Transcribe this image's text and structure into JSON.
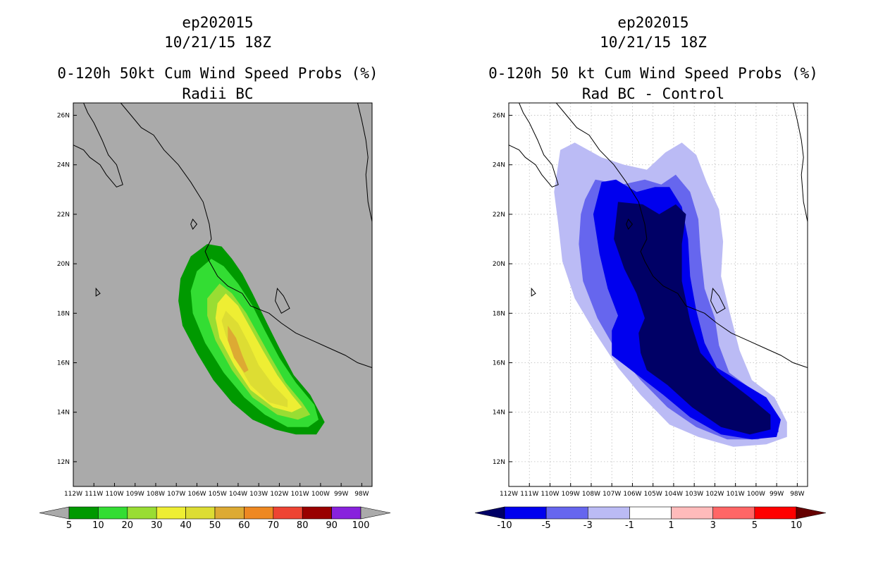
{
  "chart_data": [
    {
      "type": "heatmap",
      "title_lines": [
        "ep202015",
        "10/21/15 18Z",
        "0-120h 50kt Cum Wind Speed Probs (%)",
        "Radii BC"
      ],
      "field": "cumulative 50 kt wind speed probability (%)",
      "contour_levels": [
        5,
        10,
        20,
        30,
        40,
        50,
        60,
        70,
        80,
        90,
        100
      ],
      "colorbar": {
        "labels": [
          "5",
          "10",
          "20",
          "30",
          "40",
          "50",
          "60",
          "70",
          "80",
          "90",
          "100"
        ],
        "colors": [
          "#009900",
          "#33dd33",
          "#99dd33",
          "#eeee33",
          "#dddd33",
          "#ddaa33",
          "#ee8822",
          "#ee4433",
          "#990000",
          "#8822dd"
        ],
        "end_colors": [
          "#aaaaaa",
          "#aaaaaa"
        ]
      },
      "xlim": [
        -112,
        -97.5
      ],
      "ylim": [
        11,
        26.5
      ],
      "x_ticks": [
        -112,
        -111,
        -110,
        -109,
        -108,
        -107,
        -106,
        -105,
        -104,
        -103,
        -102,
        -101,
        -100,
        -99,
        -98
      ],
      "x_tick_labels": [
        "112W",
        "111W",
        "110W",
        "109W",
        "108W",
        "107W",
        "106W",
        "105W",
        "104W",
        "103W",
        "102W",
        "101W",
        "100W",
        "99W",
        "98W"
      ],
      "y_ticks": [
        12,
        14,
        16,
        18,
        20,
        22,
        24,
        26
      ],
      "y_tick_labels": [
        "12N",
        "14N",
        "16N",
        "18N",
        "20N",
        "22N",
        "24N",
        "26N"
      ],
      "grid": false,
      "map_background": "#aaaaaa",
      "region_fill_colors": [
        "#009900",
        "#33dd33",
        "#99dd33",
        "#eeee33",
        "#dddd33",
        "#ddaa33"
      ],
      "regions": [
        {
          "level": 5,
          "outline": [
            [
              -105.5,
              20.8
            ],
            [
              -104.8,
              20.7
            ],
            [
              -104.3,
              20.2
            ],
            [
              -103.8,
              19.6
            ],
            [
              -103.3,
              18.8
            ],
            [
              -102.6,
              17.6
            ],
            [
              -102.0,
              16.6
            ],
            [
              -101.3,
              15.5
            ],
            [
              -100.5,
              14.7
            ],
            [
              -99.8,
              13.6
            ],
            [
              -100.2,
              13.1
            ],
            [
              -101.2,
              13.1
            ],
            [
              -102.2,
              13.3
            ],
            [
              -103.3,
              13.7
            ],
            [
              -104.3,
              14.4
            ],
            [
              -105.2,
              15.3
            ],
            [
              -106.0,
              16.4
            ],
            [
              -106.7,
              17.5
            ],
            [
              -106.9,
              18.5
            ],
            [
              -106.8,
              19.4
            ],
            [
              -106.3,
              20.3
            ]
          ]
        },
        {
          "level": 10,
          "outline": [
            [
              -105.3,
              20.2
            ],
            [
              -104.7,
              19.9
            ],
            [
              -104.0,
              19.2
            ],
            [
              -103.3,
              18.3
            ],
            [
              -102.7,
              17.3
            ],
            [
              -102.0,
              16.2
            ],
            [
              -101.2,
              15.2
            ],
            [
              -100.3,
              14.3
            ],
            [
              -100.1,
              13.7
            ],
            [
              -100.6,
              13.4
            ],
            [
              -101.6,
              13.4
            ],
            [
              -102.7,
              13.9
            ],
            [
              -103.7,
              14.6
            ],
            [
              -104.7,
              15.6
            ],
            [
              -105.6,
              16.8
            ],
            [
              -106.2,
              18.0
            ],
            [
              -106.3,
              18.9
            ],
            [
              -106.0,
              19.7
            ]
          ]
        },
        {
          "level": 20,
          "outline": [
            [
              -104.9,
              19.2
            ],
            [
              -104.3,
              18.8
            ],
            [
              -103.6,
              18.0
            ],
            [
              -103.0,
              17.1
            ],
            [
              -102.4,
              16.2
            ],
            [
              -101.7,
              15.2
            ],
            [
              -100.9,
              14.4
            ],
            [
              -100.5,
              13.9
            ],
            [
              -101.1,
              13.7
            ],
            [
              -102.1,
              13.9
            ],
            [
              -103.3,
              14.6
            ],
            [
              -104.3,
              15.7
            ],
            [
              -105.1,
              16.9
            ],
            [
              -105.5,
              17.9
            ],
            [
              -105.5,
              18.6
            ]
          ]
        },
        {
          "level": 30,
          "outline": [
            [
              -104.6,
              18.8
            ],
            [
              -104.0,
              18.3
            ],
            [
              -103.4,
              17.4
            ],
            [
              -102.8,
              16.5
            ],
            [
              -102.1,
              15.5
            ],
            [
              -101.4,
              14.7
            ],
            [
              -100.9,
              14.2
            ],
            [
              -101.4,
              14.0
            ],
            [
              -102.3,
              14.2
            ],
            [
              -103.4,
              14.9
            ],
            [
              -104.2,
              15.9
            ],
            [
              -104.9,
              17.0
            ],
            [
              -105.1,
              17.8
            ],
            [
              -105.0,
              18.4
            ]
          ]
        },
        {
          "level": 40,
          "outline": [
            [
              -104.6,
              18.1
            ],
            [
              -104.0,
              17.6
            ],
            [
              -103.5,
              16.8
            ],
            [
              -103.0,
              15.9
            ],
            [
              -102.3,
              15.1
            ],
            [
              -101.6,
              14.5
            ],
            [
              -101.6,
              14.2
            ],
            [
              -102.5,
              14.4
            ],
            [
              -103.4,
              15.1
            ],
            [
              -104.1,
              16.1
            ],
            [
              -104.6,
              17.1
            ],
            [
              -104.8,
              17.7
            ]
          ]
        },
        {
          "level": 50,
          "outline": [
            [
              -104.5,
              17.5
            ],
            [
              -104.1,
              17.0
            ],
            [
              -103.8,
              16.3
            ],
            [
              -103.5,
              15.7
            ],
            [
              -103.7,
              15.6
            ],
            [
              -104.2,
              16.2
            ],
            [
              -104.5,
              16.9
            ]
          ]
        }
      ],
      "coastline_note": "black coastline outlines of Baja California and mainland Mexico"
    },
    {
      "type": "heatmap",
      "title_lines": [
        "ep202015",
        "10/21/15 18Z",
        "0-120h 50 kt Cum Wind Speed Probs (%)",
        "Rad BC - Control"
      ],
      "field": "difference: Radii BC minus Control (%)",
      "contour_levels": [
        -10,
        -5,
        -3,
        -1,
        1,
        3,
        5,
        10
      ],
      "colorbar": {
        "labels": [
          "-10",
          "-5",
          "-3",
          "-1",
          "1",
          "3",
          "5",
          "10"
        ],
        "colors": [
          "#0000ee",
          "#6666ee",
          "#bbbbf5",
          "#ffffff",
          "#ffbbbb",
          "#ff6666",
          "#ff0000"
        ],
        "end_colors": [
          "#000066",
          "#660000"
        ]
      },
      "xlim": [
        -112,
        -97.5
      ],
      "ylim": [
        11,
        26.5
      ],
      "x_ticks": [
        -112,
        -111,
        -110,
        -109,
        -108,
        -107,
        -106,
        -105,
        -104,
        -103,
        -102,
        -101,
        -100,
        -99,
        -98
      ],
      "x_tick_labels": [
        "112W",
        "111W",
        "110W",
        "109W",
        "108W",
        "107W",
        "106W",
        "105W",
        "104W",
        "103W",
        "102W",
        "101W",
        "100W",
        "99W",
        "98W"
      ],
      "y_ticks": [
        12,
        14,
        16,
        18,
        20,
        22,
        24,
        26
      ],
      "y_tick_labels": [
        "12N",
        "14N",
        "16N",
        "18N",
        "20N",
        "22N",
        "24N",
        "26N"
      ],
      "grid": true,
      "map_background": "#ffffff",
      "region_fill_colors": [
        "#bbbbf5",
        "#6666ee",
        "#0000ee",
        "#000066"
      ],
      "regions": [
        {
          "level": -1,
          "outline": [
            [
              -109.5,
              24.6
            ],
            [
              -108.8,
              24.9
            ],
            [
              -107.5,
              24.3
            ],
            [
              -106.4,
              24.0
            ],
            [
              -105.3,
              23.8
            ],
            [
              -104.4,
              24.5
            ],
            [
              -103.6,
              24.9
            ],
            [
              -102.9,
              24.4
            ],
            [
              -102.4,
              23.3
            ],
            [
              -101.8,
              22.2
            ],
            [
              -101.6,
              20.9
            ],
            [
              -101.7,
              19.5
            ],
            [
              -101.3,
              18.1
            ],
            [
              -100.8,
              16.5
            ],
            [
              -100.2,
              15.3
            ],
            [
              -99.1,
              14.6
            ],
            [
              -98.5,
              13.6
            ],
            [
              -98.5,
              13.0
            ],
            [
              -99.5,
              12.7
            ],
            [
              -101.1,
              12.6
            ],
            [
              -102.8,
              13.0
            ],
            [
              -104.2,
              13.5
            ],
            [
              -105.6,
              14.7
            ],
            [
              -106.7,
              15.8
            ],
            [
              -107.8,
              17.2
            ],
            [
              -108.8,
              18.6
            ],
            [
              -109.4,
              20.1
            ],
            [
              -109.6,
              21.6
            ],
            [
              -109.8,
              22.9
            ]
          ]
        },
        {
          "level": -3,
          "outline": [
            [
              -108.3,
              22.6
            ],
            [
              -107.8,
              23.4
            ],
            [
              -106.5,
              23.2
            ],
            [
              -105.4,
              23.4
            ],
            [
              -104.6,
              23.2
            ],
            [
              -103.9,
              23.6
            ],
            [
              -103.2,
              22.9
            ],
            [
              -102.8,
              21.8
            ],
            [
              -102.7,
              20.5
            ],
            [
              -102.5,
              19.0
            ],
            [
              -102.0,
              17.8
            ],
            [
              -101.8,
              16.7
            ],
            [
              -101.3,
              15.6
            ],
            [
              -100.0,
              14.8
            ],
            [
              -99.0,
              13.9
            ],
            [
              -98.9,
              13.2
            ],
            [
              -99.9,
              12.9
            ],
            [
              -101.4,
              12.9
            ],
            [
              -102.9,
              13.4
            ],
            [
              -104.3,
              14.2
            ],
            [
              -105.6,
              15.3
            ],
            [
              -106.8,
              16.5
            ],
            [
              -107.7,
              17.8
            ],
            [
              -108.4,
              19.3
            ],
            [
              -108.6,
              20.8
            ],
            [
              -108.5,
              22.0
            ]
          ]
        },
        {
          "level": -5,
          "outline": [
            [
              -107.9,
              22.0
            ],
            [
              -107.5,
              23.3
            ],
            [
              -106.8,
              23.4
            ],
            [
              -105.8,
              22.9
            ],
            [
              -104.9,
              23.1
            ],
            [
              -104.2,
              23.1
            ],
            [
              -103.6,
              22.3
            ],
            [
              -103.3,
              21.0
            ],
            [
              -103.2,
              19.5
            ],
            [
              -102.9,
              18.1
            ],
            [
              -102.5,
              16.8
            ],
            [
              -101.9,
              15.8
            ],
            [
              -100.7,
              15.2
            ],
            [
              -99.5,
              14.6
            ],
            [
              -98.8,
              13.7
            ],
            [
              -99.0,
              13.0
            ],
            [
              -100.2,
              12.9
            ],
            [
              -101.7,
              13.1
            ],
            [
              -103.2,
              13.8
            ],
            [
              -104.5,
              14.7
            ],
            [
              -105.9,
              15.6
            ],
            [
              -107.0,
              16.3
            ],
            [
              -107.0,
              17.3
            ],
            [
              -106.7,
              17.9
            ],
            [
              -107.2,
              19.0
            ],
            [
              -107.6,
              20.4
            ]
          ]
        },
        {
          "level": -10,
          "outline": [
            [
              -106.9,
              21.0
            ],
            [
              -106.7,
              22.5
            ],
            [
              -105.5,
              22.4
            ],
            [
              -104.7,
              22.0
            ],
            [
              -103.9,
              22.4
            ],
            [
              -103.4,
              22.0
            ],
            [
              -103.6,
              20.8
            ],
            [
              -103.6,
              19.3
            ],
            [
              -103.2,
              17.7
            ],
            [
              -102.7,
              16.4
            ],
            [
              -101.7,
              15.5
            ],
            [
              -100.3,
              14.6
            ],
            [
              -99.3,
              13.9
            ],
            [
              -99.3,
              13.3
            ],
            [
              -100.3,
              13.1
            ],
            [
              -101.7,
              13.4
            ],
            [
              -103.1,
              14.2
            ],
            [
              -104.3,
              15.1
            ],
            [
              -105.3,
              15.7
            ],
            [
              -105.6,
              16.4
            ],
            [
              -105.7,
              17.2
            ],
            [
              -105.4,
              17.8
            ],
            [
              -105.8,
              18.8
            ],
            [
              -106.4,
              19.8
            ]
          ]
        }
      ],
      "coastline_note": "black coastline outlines of Baja California and mainland Mexico"
    }
  ]
}
